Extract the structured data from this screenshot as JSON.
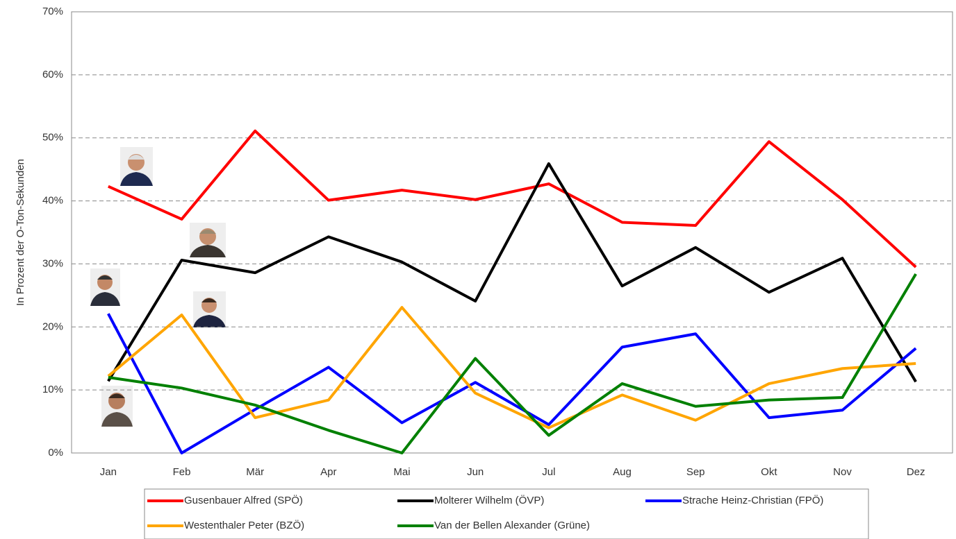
{
  "chart_data": {
    "type": "line",
    "y_label": "In Prozent der O-Ton-Sekunden",
    "categories": [
      "Jan",
      "Feb",
      "Mär",
      "Apr",
      "Mai",
      "Jun",
      "Jul",
      "Aug",
      "Sep",
      "Okt",
      "Nov",
      "Dez"
    ],
    "series": [
      {
        "name": "Gusenbauer Alfred (SPÖ)",
        "color": "#ff0000",
        "values": [
          42.3,
          37.1,
          51.1,
          40.1,
          41.7,
          40.2,
          42.7,
          36.6,
          36.1,
          49.4,
          40.2,
          29.5
        ]
      },
      {
        "name": "Molterer Wilhelm (ÖVP)",
        "color": "#000000",
        "values": [
          11.4,
          30.6,
          28.6,
          34.3,
          30.3,
          24.1,
          45.9,
          26.5,
          32.6,
          25.5,
          30.9,
          11.3
        ]
      },
      {
        "name": "Strache Heinz-Christian (FPÖ)",
        "color": "#0000ff",
        "values": [
          22.1,
          0,
          6.9,
          13.6,
          4.8,
          11.2,
          4.5,
          16.8,
          18.9,
          5.6,
          6.8,
          16.6
        ]
      },
      {
        "name": "Westenthaler Peter (BZÖ)",
        "color": "#ffa500",
        "values": [
          12.2,
          21.9,
          5.6,
          8.4,
          23.1,
          9.5,
          4.0,
          9.2,
          5.2,
          11.0,
          13.4,
          14.2
        ]
      },
      {
        "name": "Van der Bellen Alexander (Grüne)",
        "color": "#008000",
        "values": [
          12.0,
          10.3,
          7.6,
          3.6,
          0,
          15.0,
          2.8,
          11.0,
          7.4,
          8.4,
          8.8,
          28.4
        ]
      }
    ],
    "ylim": [
      0,
      70
    ],
    "yticks": [
      {
        "value": 0,
        "label": "0%"
      },
      {
        "value": 10,
        "label": "10%"
      },
      {
        "value": 20,
        "label": "20%"
      },
      {
        "value": 30,
        "label": "30%"
      },
      {
        "value": 40,
        "label": "40%"
      },
      {
        "value": 50,
        "label": "50%"
      },
      {
        "value": 60,
        "label": "60%"
      },
      {
        "value": 70,
        "label": "70%"
      }
    ],
    "grid": true,
    "legend": "bottom"
  }
}
